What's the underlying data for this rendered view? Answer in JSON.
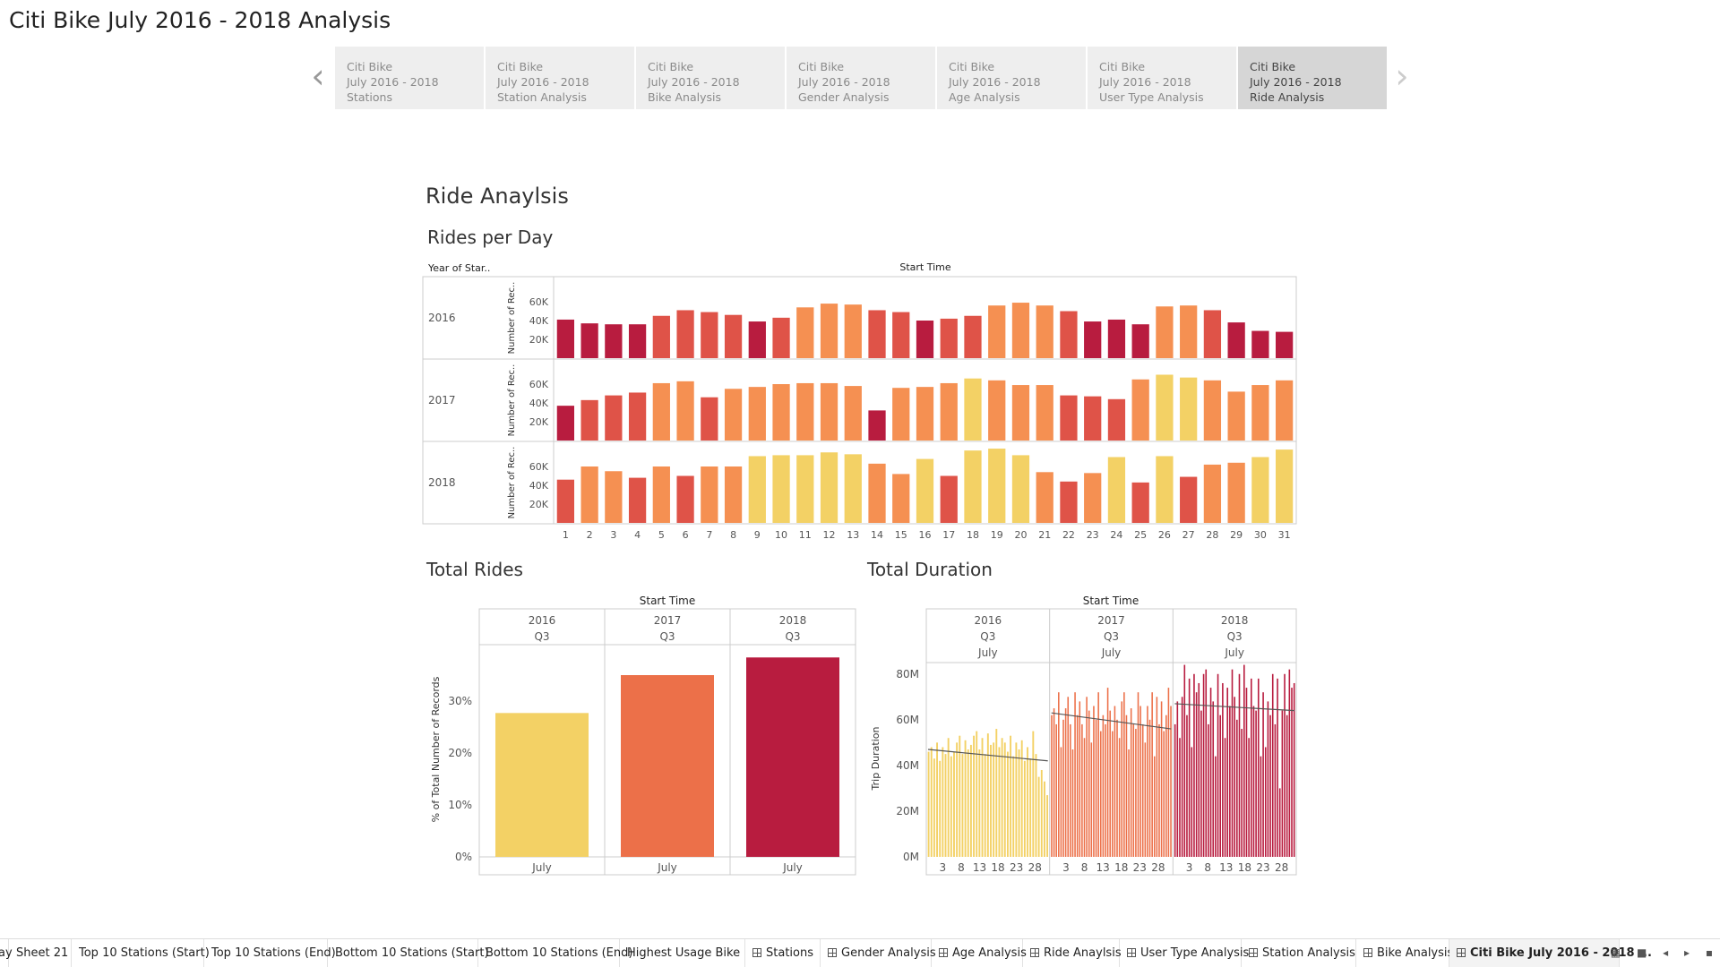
{
  "page_title": "Citi Bike July 2016 - 2018 Analysis",
  "story_points": [
    {
      "l1": "Citi Bike",
      "l2": "July 2016 - 2018",
      "l3": "Stations"
    },
    {
      "l1": "Citi Bike",
      "l2": "July 2016 - 2018",
      "l3": "Station Analysis"
    },
    {
      "l1": "Citi Bike",
      "l2": "July 2016 - 2018",
      "l3": "Bike Analysis"
    },
    {
      "l1": "Citi Bike",
      "l2": "July 2016 - 2018",
      "l3": "Gender Analysis"
    },
    {
      "l1": "Citi Bike",
      "l2": "July 2016 - 2018",
      "l3": "Age Analysis"
    },
    {
      "l1": "Citi Bike",
      "l2": "July 2016 - 2018",
      "l3": "User Type Analysis"
    },
    {
      "l1": "Citi Bike",
      "l2": "July 2016 - 2018",
      "l3": "Ride Analysis",
      "active": true
    }
  ],
  "nav": {
    "prev": "‹",
    "next": "›"
  },
  "story_title": "Ride Anaylsis",
  "sections": {
    "rides_per_day": "Rides per Day",
    "total_rides": "Total Rides",
    "total_duration": "Total Duration"
  },
  "colors": {
    "c1": "#b81c3f",
    "c2": "#df5348",
    "c3": "#f59052",
    "c4": "#f3d165",
    "bar2017": "#ec7049"
  },
  "chart_data": [
    {
      "type": "bar",
      "id": "rides_per_day",
      "title": "Rides per Day",
      "row_header": "Year of Star..",
      "column_header": "Start Time",
      "ylabel": "Number of Rec..",
      "yticks": [
        "20K",
        "40K",
        "60K"
      ],
      "ylim": [
        0,
        80000
      ],
      "x": [
        1,
        2,
        3,
        4,
        5,
        6,
        7,
        8,
        9,
        10,
        11,
        12,
        13,
        14,
        15,
        16,
        17,
        18,
        19,
        20,
        21,
        22,
        23,
        24,
        25,
        26,
        27,
        28,
        29,
        30,
        31
      ],
      "series": [
        {
          "name": "2016",
          "values": [
            41000,
            37000,
            36000,
            36000,
            45000,
            51000,
            49000,
            46000,
            39000,
            43000,
            54000,
            58000,
            57000,
            51000,
            49000,
            40000,
            42000,
            45000,
            56000,
            59000,
            56000,
            50000,
            39000,
            41000,
            36000,
            55000,
            56000,
            51000,
            38000,
            29000,
            28000
          ]
        },
        {
          "name": "2017",
          "values": [
            37000,
            43000,
            48000,
            51000,
            61000,
            63000,
            46000,
            55000,
            57000,
            60000,
            61000,
            61000,
            58000,
            32000,
            56000,
            57000,
            61000,
            66000,
            64000,
            59000,
            59000,
            48000,
            47000,
            44000,
            65000,
            70000,
            67000,
            64000,
            52000,
            59000,
            64000
          ]
        },
        {
          "name": "2018",
          "values": [
            46000,
            60000,
            55000,
            48000,
            60000,
            50000,
            60000,
            60000,
            71000,
            72000,
            72000,
            75000,
            73000,
            63000,
            52000,
            68000,
            50000,
            77000,
            79000,
            72000,
            54000,
            44000,
            53000,
            70000,
            43000,
            71000,
            49000,
            62000,
            64000,
            70000,
            78000
          ]
        }
      ]
    },
    {
      "type": "bar",
      "id": "total_rides",
      "title": "Total Rides",
      "column_header": "Start Time",
      "columns": [
        {
          "year": "2016",
          "quarter": "Q3",
          "month": "July"
        },
        {
          "year": "2017",
          "quarter": "Q3",
          "month": "July"
        },
        {
          "year": "2018",
          "quarter": "Q3",
          "month": "July"
        }
      ],
      "ylabel": "% of Total Number of Records",
      "yticks": [
        "0%",
        "10%",
        "20%",
        "30%"
      ],
      "ylim": [
        0,
        40
      ],
      "values": [
        27.7,
        35.0,
        38.4
      ]
    },
    {
      "type": "bar",
      "id": "total_duration",
      "title": "Total Duration",
      "column_header": "Start Time",
      "columns": [
        {
          "year": "2016",
          "quarter": "Q3",
          "month": "July"
        },
        {
          "year": "2017",
          "quarter": "Q3",
          "month": "July"
        },
        {
          "year": "2018",
          "quarter": "Q3",
          "month": "July"
        }
      ],
      "ylabel": "Trip Duration",
      "yticks": [
        "0M",
        "20M",
        "40M",
        "60M",
        "80M"
      ],
      "ylim": [
        0,
        85
      ],
      "xticks": [
        "3",
        "8",
        "13",
        "18",
        "23",
        "28"
      ],
      "xtick_days": [
        3,
        8,
        13,
        18,
        23,
        28
      ],
      "series": [
        {
          "name": "2016",
          "values": [
            46,
            48,
            43,
            50,
            42,
            48,
            45,
            52,
            44,
            46,
            50,
            53,
            45,
            51,
            47,
            49,
            53,
            55,
            47,
            52,
            45,
            54,
            49,
            50,
            56,
            48,
            52,
            50,
            46,
            53,
            44,
            50,
            47,
            51,
            42,
            48,
            43,
            55,
            45,
            35,
            38,
            33,
            27
          ],
          "trend": [
            47,
            42
          ]
        },
        {
          "name": "2017",
          "values": [
            62,
            65,
            58,
            72,
            48,
            60,
            65,
            70,
            58,
            47,
            72,
            62,
            68,
            58,
            52,
            70,
            64,
            50,
            66,
            60,
            72,
            55,
            62,
            58,
            74,
            64,
            55,
            66,
            60,
            52,
            68,
            72,
            62,
            47,
            65,
            58,
            56,
            72,
            66,
            58,
            50,
            66,
            60,
            72,
            44,
            70,
            58,
            68,
            55,
            62,
            74,
            66
          ],
          "trend": [
            63,
            56
          ]
        },
        {
          "name": "2018",
          "values": [
            58,
            68,
            52,
            70,
            84,
            62,
            78,
            48,
            80,
            72,
            76,
            64,
            80,
            82,
            58,
            74,
            68,
            44,
            80,
            62,
            76,
            52,
            74,
            66,
            82,
            70,
            60,
            80,
            56,
            84,
            74,
            52,
            78,
            66,
            64,
            78,
            44,
            72,
            48,
            68,
            62,
            80,
            58,
            78,
            30,
            64,
            80,
            62,
            82,
            74,
            76
          ],
          "trend": [
            67,
            64
          ]
        }
      ]
    }
  ],
  "tabs": [
    {
      "label": "ay",
      "icon": false
    },
    {
      "label": "Sheet 21",
      "icon": false
    },
    {
      "label": "Top 10 Stations (Start)",
      "icon": false
    },
    {
      "label": "Top 10 Stations (End)",
      "icon": false
    },
    {
      "label": "Bottom 10 Stations (Start)",
      "icon": false
    },
    {
      "label": "Bottom 10 Stations (End)",
      "icon": false
    },
    {
      "label": "Highest Usage Bike",
      "icon": false
    },
    {
      "label": "Stations",
      "icon": true
    },
    {
      "label": "Gender Analysis",
      "icon": true
    },
    {
      "label": "Age Analysis",
      "icon": true
    },
    {
      "label": "Ride Anaylsis",
      "icon": true
    },
    {
      "label": "User Type Analysis",
      "icon": true
    },
    {
      "label": "Station Analysis",
      "icon": true
    },
    {
      "label": "Bike Analysis",
      "icon": true
    },
    {
      "label": "Citi Bike July 2016 - 2018 ...",
      "icon": true,
      "active": true
    }
  ]
}
